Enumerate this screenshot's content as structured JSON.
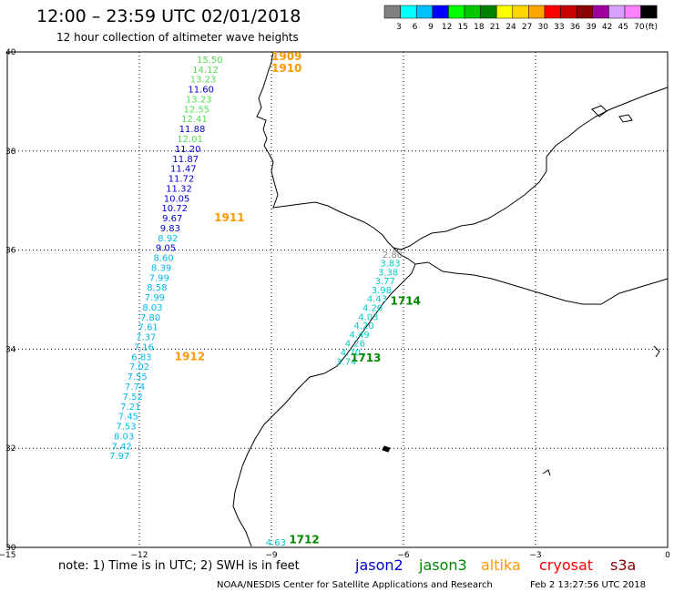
{
  "header": {
    "title": "12:00 – 23:59 UTC 02/01/2018",
    "subtitle": "12 hour collection of altimeter wave heights"
  },
  "colorbar": {
    "unit": "(ft)",
    "bins": [
      {
        "label": "3",
        "color": "#808080"
      },
      {
        "label": "6",
        "color": "#00ffff"
      },
      {
        "label": "9",
        "color": "#00bfff"
      },
      {
        "label": "12",
        "color": "#0000ff"
      },
      {
        "label": "15",
        "color": "#00ff00"
      },
      {
        "label": "18",
        "color": "#00c800"
      },
      {
        "label": "21",
        "color": "#008000"
      },
      {
        "label": "24",
        "color": "#ffff00"
      },
      {
        "label": "27",
        "color": "#ffd700"
      },
      {
        "label": "30",
        "color": "#ffa500"
      },
      {
        "label": "33",
        "color": "#ff0000"
      },
      {
        "label": "36",
        "color": "#c80000"
      },
      {
        "label": "39",
        "color": "#8b0000"
      },
      {
        "label": "42",
        "color": "#a000a0"
      },
      {
        "label": "45",
        "color": "#d8a0ff"
      },
      {
        "label": "70",
        "color": "#ff80ff"
      },
      {
        "label": "",
        "color": "#000000"
      }
    ]
  },
  "axes": {
    "lon_labels": [
      "−15",
      "−12",
      "−9",
      "−6",
      "−3",
      "0"
    ],
    "lat_labels": [
      "40",
      "38",
      "36",
      "34",
      "32",
      "30"
    ],
    "lon_range": [
      -15,
      0
    ],
    "lat_range": [
      30,
      40
    ]
  },
  "colors": {
    "green_light": "#55dd55",
    "blue": "#0000cc",
    "cyan": "#00cccc",
    "orange": "#ff9900",
    "dark_green": "#008800",
    "gray": "#888888"
  },
  "track_west": [
    {
      "lon": -10.4,
      "lat": 39.78,
      "value": "15.50",
      "color": "#55dd55"
    },
    {
      "lon": -10.5,
      "lat": 39.58,
      "value": "14.12",
      "color": "#55dd55"
    },
    {
      "lon": -10.55,
      "lat": 39.38,
      "value": "13.23",
      "color": "#55dd55"
    },
    {
      "lon": -10.6,
      "lat": 39.18,
      "value": "11.60",
      "color": "#0000cc"
    },
    {
      "lon": -10.65,
      "lat": 38.98,
      "value": "13.23",
      "color": "#55dd55"
    },
    {
      "lon": -10.7,
      "lat": 38.78,
      "value": "12.55",
      "color": "#55dd55"
    },
    {
      "lon": -10.75,
      "lat": 38.58,
      "value": "12.41",
      "color": "#55dd55"
    },
    {
      "lon": -10.8,
      "lat": 38.38,
      "value": "11.88",
      "color": "#0000cc"
    },
    {
      "lon": -10.85,
      "lat": 38.18,
      "value": "12.01",
      "color": "#55dd55"
    },
    {
      "lon": -10.9,
      "lat": 37.98,
      "value": "11.20",
      "color": "#0000cc"
    },
    {
      "lon": -10.95,
      "lat": 37.78,
      "value": "11.87",
      "color": "#0000cc"
    },
    {
      "lon": -11.0,
      "lat": 37.58,
      "value": "11.47",
      "color": "#0000cc"
    },
    {
      "lon": -11.05,
      "lat": 37.38,
      "value": "11.72",
      "color": "#0000cc"
    },
    {
      "lon": -11.1,
      "lat": 37.18,
      "value": "11.32",
      "color": "#0000cc"
    },
    {
      "lon": -11.15,
      "lat": 36.98,
      "value": "10.05",
      "color": "#0000cc"
    },
    {
      "lon": -11.2,
      "lat": 36.78,
      "value": "10.72",
      "color": "#0000cc"
    },
    {
      "lon": -11.25,
      "lat": 36.58,
      "value": "9.67",
      "color": "#0000cc"
    },
    {
      "lon": -11.3,
      "lat": 36.38,
      "value": "9.83",
      "color": "#0000cc"
    },
    {
      "lon": -11.35,
      "lat": 36.18,
      "value": "8.92",
      "color": "#00bbee"
    },
    {
      "lon": -11.4,
      "lat": 35.98,
      "value": "9.05",
      "color": "#0000cc"
    },
    {
      "lon": -11.45,
      "lat": 35.78,
      "value": "8.60",
      "color": "#00bbee"
    },
    {
      "lon": -11.5,
      "lat": 35.58,
      "value": "8.39",
      "color": "#00bbee"
    },
    {
      "lon": -11.55,
      "lat": 35.38,
      "value": "7.99",
      "color": "#00bbee"
    },
    {
      "lon": -11.6,
      "lat": 35.18,
      "value": "8.58",
      "color": "#00bbee"
    },
    {
      "lon": -11.65,
      "lat": 34.98,
      "value": "7.99",
      "color": "#00bbee"
    },
    {
      "lon": -11.7,
      "lat": 34.78,
      "value": "8.03",
      "color": "#00bbee"
    },
    {
      "lon": -11.75,
      "lat": 34.58,
      "value": "7.80",
      "color": "#00bbee"
    },
    {
      "lon": -11.8,
      "lat": 34.38,
      "value": "7.61",
      "color": "#00bbee"
    },
    {
      "lon": -11.85,
      "lat": 34.18,
      "value": "7.37",
      "color": "#00bbee"
    },
    {
      "lon": -11.9,
      "lat": 33.98,
      "value": "7.16",
      "color": "#00bbee"
    },
    {
      "lon": -11.95,
      "lat": 33.78,
      "value": "6.83",
      "color": "#00bbee"
    },
    {
      "lon": -12.0,
      "lat": 33.58,
      "value": "7.02",
      "color": "#00bbee"
    },
    {
      "lon": -12.05,
      "lat": 33.38,
      "value": "7.55",
      "color": "#00bbee"
    },
    {
      "lon": -12.1,
      "lat": 33.18,
      "value": "7.74",
      "color": "#00bbee"
    },
    {
      "lon": -12.15,
      "lat": 32.98,
      "value": "7.52",
      "color": "#00bbee"
    },
    {
      "lon": -12.2,
      "lat": 32.78,
      "value": "7.21",
      "color": "#00bbee"
    },
    {
      "lon": -12.25,
      "lat": 32.58,
      "value": "7.45",
      "color": "#00bbee"
    },
    {
      "lon": -12.3,
      "lat": 32.38,
      "value": "7.53",
      "color": "#00bbee"
    },
    {
      "lon": -12.35,
      "lat": 32.18,
      "value": "8.03",
      "color": "#00bbee"
    },
    {
      "lon": -12.4,
      "lat": 31.98,
      "value": "7.42",
      "color": "#00bbee"
    },
    {
      "lon": -12.45,
      "lat": 31.78,
      "value": "7.97",
      "color": "#00bbee"
    }
  ],
  "track_east": [
    {
      "lon": -6.25,
      "lat": 35.85,
      "value": "2.80",
      "color": "#888888"
    },
    {
      "lon": -6.3,
      "lat": 35.67,
      "value": "3.83",
      "color": "#00cccc"
    },
    {
      "lon": -6.35,
      "lat": 35.49,
      "value": "3.38",
      "color": "#00cccc"
    },
    {
      "lon": -6.42,
      "lat": 35.31,
      "value": "3.77",
      "color": "#00cccc"
    },
    {
      "lon": -6.5,
      "lat": 35.13,
      "value": "3.98",
      "color": "#00cccc"
    },
    {
      "lon": -6.6,
      "lat": 34.95,
      "value": "4.43",
      "color": "#00cccc"
    },
    {
      "lon": -6.7,
      "lat": 34.77,
      "value": "4.20",
      "color": "#00cccc"
    },
    {
      "lon": -6.8,
      "lat": 34.59,
      "value": "4.03",
      "color": "#00cccc"
    },
    {
      "lon": -6.9,
      "lat": 34.41,
      "value": "4.20",
      "color": "#00cccc"
    },
    {
      "lon": -7.0,
      "lat": 34.23,
      "value": "4.49",
      "color": "#00cccc"
    },
    {
      "lon": -7.1,
      "lat": 34.05,
      "value": "4.26",
      "color": "#00cccc"
    },
    {
      "lon": -7.2,
      "lat": 33.87,
      "value": "4.70",
      "color": "#00cccc"
    },
    {
      "lon": -7.3,
      "lat": 33.69,
      "value": "3.74",
      "color": "#00cccc"
    },
    {
      "lon": -8.9,
      "lat": 30.04,
      "value": "4.63",
      "color": "#00cccc"
    }
  ],
  "time_labels": [
    {
      "lon": -9.0,
      "lat": 39.83,
      "text": "1909",
      "color": "#ff9900"
    },
    {
      "lon": -9.0,
      "lat": 39.6,
      "text": "1910",
      "color": "#ff9900"
    },
    {
      "lon": -10.3,
      "lat": 36.58,
      "text": "1911",
      "color": "#ff9900"
    },
    {
      "lon": -11.2,
      "lat": 33.78,
      "text": "1912",
      "color": "#ff9900"
    },
    {
      "lon": -6.3,
      "lat": 34.9,
      "text": "1714",
      "color": "#008800"
    },
    {
      "lon": -7.2,
      "lat": 33.75,
      "text": "1713",
      "color": "#008800"
    },
    {
      "lon": -8.6,
      "lat": 30.08,
      "text": "1712",
      "color": "#008800"
    }
  ],
  "footer": {
    "note": "note:  1) Time is in UTC;  2) SWH is in feet",
    "legend": [
      {
        "label": "jason2",
        "color": "#0000cc"
      },
      {
        "label": "jason3",
        "color": "#008800"
      },
      {
        "label": "altika",
        "color": "#ff9900"
      },
      {
        "label": "cryosat",
        "color": "#ff0000"
      },
      {
        "label": "s3a",
        "color": "#880000"
      }
    ],
    "credit": "NOAA/NESDIS Center for Satellite Applications and Research",
    "timestamp": "Feb  2 13:27:56 UTC 2018"
  }
}
